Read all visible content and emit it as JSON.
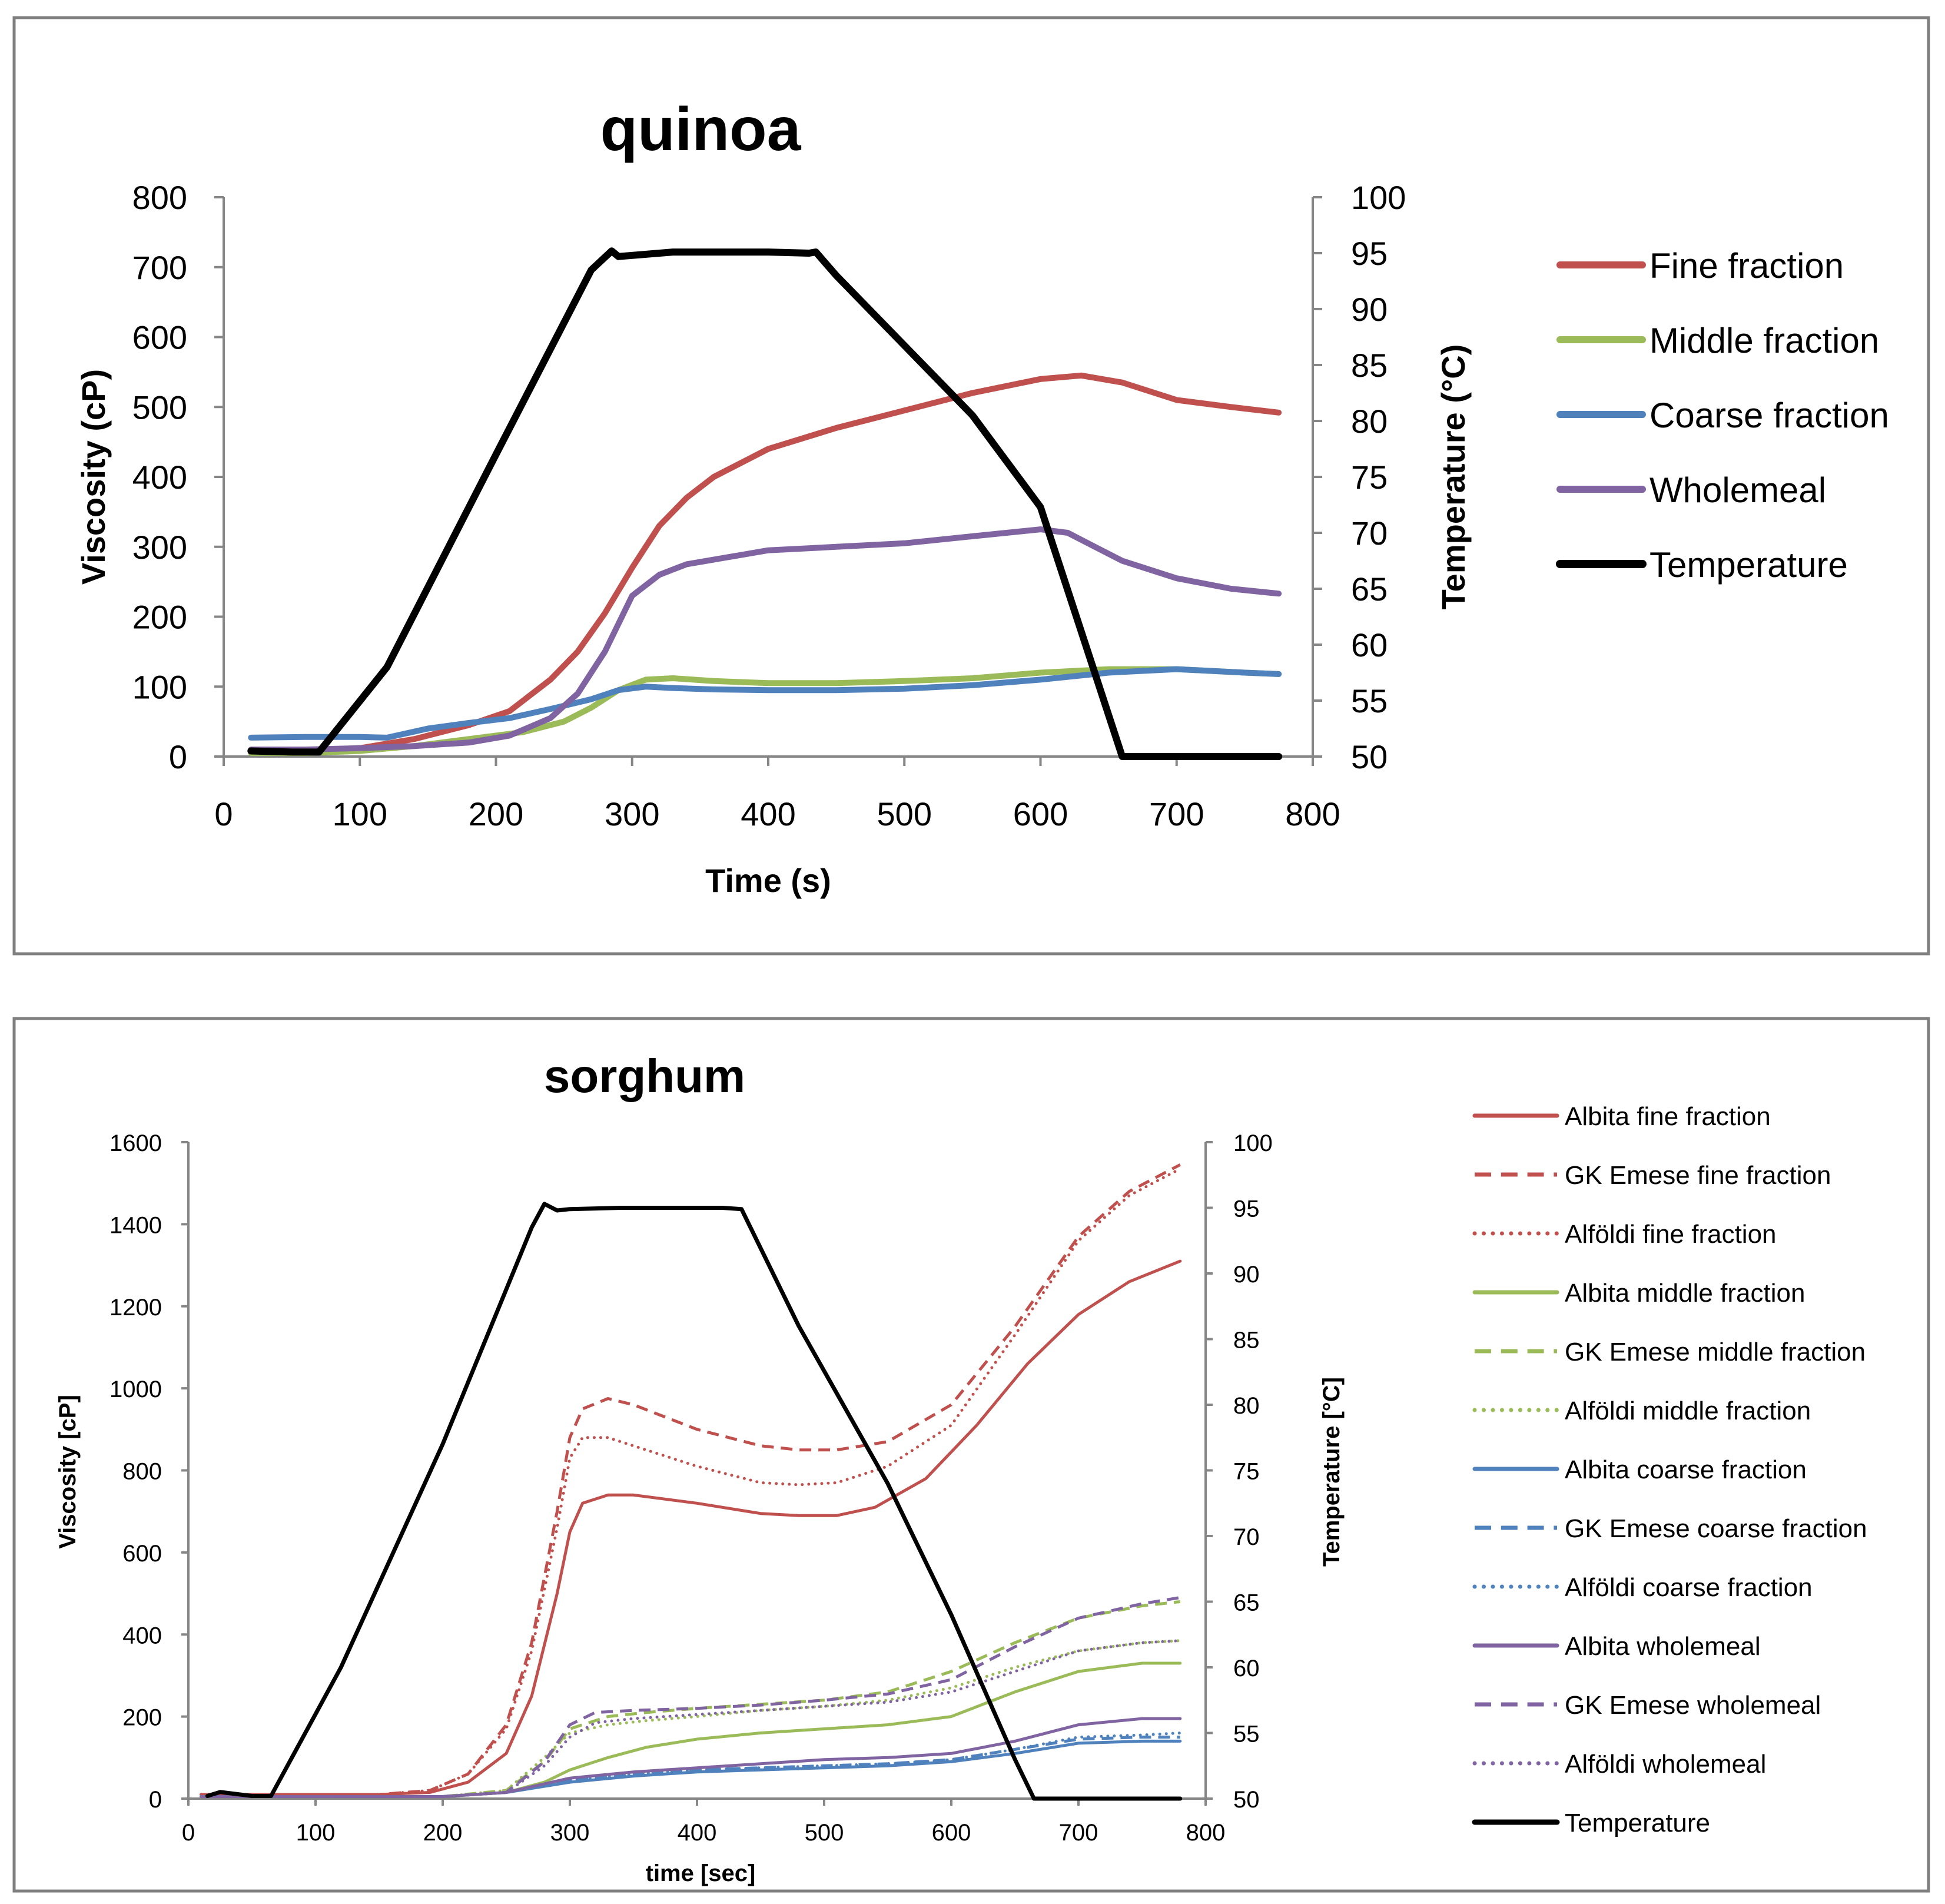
{
  "chart_data": [
    {
      "type": "line",
      "title": "quinoa",
      "xlabel": "Time (s)",
      "ylabel": "Viscosity (cP)",
      "y2label": "Temperature (°C)",
      "xlim": [
        0,
        800
      ],
      "ylim": [
        0,
        800
      ],
      "y2lim": [
        50,
        100
      ],
      "xticks": [
        "0",
        "100",
        "200",
        "300",
        "400",
        "500",
        "600",
        "700",
        "800"
      ],
      "yticks": [
        "0",
        "100",
        "200",
        "300",
        "400",
        "500",
        "600",
        "700",
        "800"
      ],
      "y2ticks": [
        "50",
        "55",
        "60",
        "65",
        "70",
        "75",
        "80",
        "85",
        "90",
        "95",
        "100"
      ],
      "legend_position": "right",
      "series": [
        {
          "name": "Fine fraction",
          "axis": "left",
          "color": "#c0504d",
          "style": "solid",
          "x": [
            20,
            60,
            100,
            140,
            180,
            210,
            240,
            260,
            280,
            300,
            320,
            340,
            360,
            400,
            450,
            500,
            550,
            600,
            630,
            660,
            700,
            740,
            775
          ],
          "y": [
            8,
            8,
            12,
            25,
            45,
            65,
            110,
            150,
            205,
            270,
            330,
            370,
            400,
            440,
            470,
            495,
            520,
            540,
            545,
            535,
            510,
            500,
            492
          ]
        },
        {
          "name": "Middle fraction",
          "axis": "left",
          "color": "#9bbb59",
          "style": "solid",
          "x": [
            20,
            60,
            100,
            140,
            180,
            220,
            250,
            270,
            290,
            310,
            330,
            360,
            400,
            450,
            500,
            550,
            600,
            650,
            700,
            750,
            775
          ],
          "y": [
            5,
            5,
            8,
            15,
            25,
            35,
            50,
            70,
            95,
            110,
            112,
            108,
            105,
            105,
            108,
            112,
            120,
            125,
            125,
            120,
            118
          ]
        },
        {
          "name": "Coarse fraction",
          "axis": "left",
          "color": "#4f81bd",
          "style": "solid",
          "x": [
            20,
            60,
            100,
            120,
            150,
            180,
            210,
            240,
            270,
            290,
            310,
            330,
            360,
            400,
            450,
            500,
            550,
            600,
            650,
            700,
            750,
            775
          ],
          "y": [
            27,
            28,
            28,
            27,
            40,
            48,
            55,
            68,
            82,
            95,
            100,
            98,
            96,
            95,
            95,
            97,
            102,
            110,
            120,
            125,
            120,
            118
          ]
        },
        {
          "name": "Wholemeal",
          "axis": "left",
          "color": "#8064a2",
          "style": "solid",
          "x": [
            20,
            60,
            100,
            140,
            180,
            210,
            240,
            260,
            280,
            300,
            320,
            340,
            370,
            400,
            450,
            500,
            550,
            600,
            620,
            640,
            660,
            700,
            740,
            775
          ],
          "y": [
            10,
            10,
            12,
            15,
            20,
            30,
            55,
            90,
            150,
            230,
            260,
            275,
            285,
            295,
            300,
            305,
            315,
            325,
            320,
            300,
            280,
            255,
            240,
            233
          ]
        },
        {
          "name": "Temperature",
          "axis": "right",
          "color": "#000000",
          "style": "solid",
          "x": [
            20,
            50,
            70,
            120,
            200,
            270,
            285,
            290,
            300,
            330,
            400,
            430,
            435,
            450,
            550,
            600,
            660,
            680,
            775
          ],
          "y": [
            50.5,
            50.4,
            50.4,
            58,
            77,
            93.5,
            95.2,
            94.7,
            94.8,
            95.1,
            95.1,
            95.0,
            95.1,
            93,
            80.5,
            72.3,
            50,
            50,
            50
          ]
        }
      ]
    },
    {
      "type": "line",
      "title": "sorghum",
      "xlabel": "time [sec]",
      "ylabel": "Viscosity [cP]",
      "y2label": "Temperature [°C]",
      "xlim": [
        0,
        800
      ],
      "ylim": [
        0,
        1600
      ],
      "y2lim": [
        50,
        100
      ],
      "xticks": [
        "0",
        "100",
        "200",
        "300",
        "400",
        "500",
        "600",
        "700",
        "800"
      ],
      "yticks": [
        "0",
        "200",
        "400",
        "600",
        "800",
        "1000",
        "1200",
        "1400",
        "1600"
      ],
      "y2ticks": [
        "50",
        "55",
        "60",
        "65",
        "70",
        "75",
        "80",
        "85",
        "90",
        "95",
        "100"
      ],
      "legend_position": "right",
      "series": [
        {
          "name": "Albita fine fraction",
          "axis": "left",
          "color": "#c0504d",
          "style": "solid",
          "x": [
            10,
            50,
            100,
            150,
            190,
            220,
            250,
            270,
            290,
            300,
            310,
            330,
            350,
            400,
            450,
            480,
            510,
            540,
            580,
            620,
            660,
            700,
            740,
            780
          ],
          "y": [
            10,
            10,
            10,
            10,
            15,
            40,
            110,
            250,
            500,
            650,
            720,
            740,
            740,
            720,
            695,
            690,
            690,
            710,
            780,
            910,
            1060,
            1180,
            1260,
            1310
          ]
        },
        {
          "name": "GK Emese fine fraction",
          "axis": "left",
          "color": "#c0504d",
          "style": "dashed",
          "x": [
            10,
            50,
            100,
            150,
            190,
            220,
            250,
            270,
            290,
            300,
            310,
            330,
            350,
            400,
            450,
            480,
            510,
            550,
            600,
            650,
            700,
            740,
            780
          ],
          "y": [
            10,
            10,
            10,
            10,
            20,
            60,
            180,
            380,
            700,
            880,
            950,
            975,
            960,
            900,
            860,
            850,
            850,
            870,
            960,
            1150,
            1370,
            1480,
            1545
          ]
        },
        {
          "name": "Alföldi fine fraction",
          "axis": "left",
          "color": "#c0504d",
          "style": "dotted",
          "x": [
            10,
            50,
            100,
            150,
            190,
            220,
            250,
            270,
            290,
            300,
            310,
            330,
            350,
            400,
            450,
            480,
            510,
            550,
            600,
            650,
            700,
            740,
            780
          ],
          "y": [
            10,
            10,
            10,
            10,
            20,
            60,
            170,
            360,
            660,
            830,
            880,
            880,
            860,
            810,
            770,
            765,
            770,
            810,
            910,
            1130,
            1360,
            1470,
            1535
          ]
        },
        {
          "name": "Albita middle fraction",
          "axis": "left",
          "color": "#9bbb59",
          "style": "solid",
          "x": [
            10,
            100,
            200,
            250,
            280,
            300,
            330,
            360,
            400,
            450,
            500,
            550,
            600,
            650,
            700,
            750,
            780
          ],
          "y": [
            5,
            5,
            5,
            15,
            40,
            70,
            100,
            125,
            145,
            160,
            170,
            180,
            200,
            260,
            310,
            330,
            330
          ]
        },
        {
          "name": "GK Emese middle fraction",
          "axis": "left",
          "color": "#9bbb59",
          "style": "dashed",
          "x": [
            10,
            100,
            200,
            250,
            280,
            300,
            330,
            360,
            400,
            450,
            500,
            550,
            600,
            650,
            700,
            750,
            780
          ],
          "y": [
            5,
            5,
            5,
            20,
            90,
            170,
            200,
            210,
            220,
            230,
            240,
            260,
            310,
            380,
            440,
            470,
            480
          ]
        },
        {
          "name": "Alföldi middle fraction",
          "axis": "left",
          "color": "#9bbb59",
          "style": "dotted",
          "x": [
            10,
            100,
            200,
            250,
            280,
            300,
            330,
            360,
            400,
            450,
            500,
            550,
            600,
            650,
            700,
            750,
            780
          ],
          "y": [
            5,
            5,
            5,
            20,
            100,
            160,
            180,
            190,
            200,
            215,
            225,
            240,
            270,
            320,
            360,
            380,
            385
          ]
        },
        {
          "name": "Albita coarse fraction",
          "axis": "left",
          "color": "#4f81bd",
          "style": "solid",
          "x": [
            10,
            100,
            200,
            250,
            300,
            350,
            400,
            450,
            500,
            550,
            600,
            650,
            700,
            750,
            780
          ],
          "y": [
            5,
            5,
            5,
            15,
            40,
            55,
            65,
            70,
            75,
            80,
            90,
            110,
            135,
            140,
            140
          ]
        },
        {
          "name": "GK Emese coarse fraction",
          "axis": "left",
          "color": "#4f81bd",
          "style": "dashed",
          "x": [
            10,
            100,
            200,
            250,
            300,
            350,
            400,
            450,
            500,
            550,
            600,
            650,
            700,
            750,
            780
          ],
          "y": [
            5,
            5,
            5,
            15,
            45,
            60,
            70,
            75,
            80,
            85,
            95,
            120,
            145,
            150,
            150
          ]
        },
        {
          "name": "Alföldi coarse fraction",
          "axis": "left",
          "color": "#4f81bd",
          "style": "dotted",
          "x": [
            10,
            100,
            200,
            250,
            300,
            350,
            400,
            450,
            500,
            550,
            600,
            650,
            700,
            750,
            780
          ],
          "y": [
            5,
            5,
            5,
            15,
            45,
            60,
            70,
            75,
            80,
            85,
            95,
            120,
            150,
            155,
            160
          ]
        },
        {
          "name": "Albita wholemeal",
          "axis": "left",
          "color": "#8064a2",
          "style": "solid",
          "x": [
            10,
            100,
            200,
            250,
            300,
            350,
            400,
            450,
            500,
            550,
            600,
            650,
            700,
            750,
            780
          ],
          "y": [
            5,
            5,
            5,
            15,
            50,
            65,
            75,
            85,
            95,
            100,
            110,
            140,
            180,
            195,
            195
          ]
        },
        {
          "name": "GK Emese wholemeal",
          "axis": "left",
          "color": "#8064a2",
          "style": "dashed",
          "x": [
            10,
            100,
            200,
            250,
            280,
            300,
            320,
            350,
            400,
            450,
            500,
            550,
            600,
            650,
            700,
            750,
            780
          ],
          "y": [
            5,
            5,
            5,
            15,
            90,
            180,
            210,
            215,
            220,
            228,
            240,
            255,
            290,
            370,
            440,
            475,
            490
          ]
        },
        {
          "name": "Alföldi wholemeal",
          "axis": "left",
          "color": "#8064a2",
          "style": "dotted",
          "x": [
            10,
            100,
            200,
            250,
            280,
            300,
            320,
            350,
            400,
            450,
            500,
            550,
            600,
            650,
            700,
            750,
            780
          ],
          "y": [
            5,
            5,
            5,
            15,
            80,
            150,
            185,
            195,
            205,
            215,
            225,
            235,
            260,
            310,
            360,
            380,
            385
          ]
        },
        {
          "name": "Temperature",
          "axis": "right",
          "color": "#000000",
          "style": "solid",
          "x": [
            15,
            25,
            50,
            65,
            120,
            200,
            270,
            280,
            290,
            300,
            340,
            380,
            420,
            435,
            480,
            550,
            600,
            650,
            665,
            700,
            780
          ],
          "y": [
            50.2,
            50.5,
            50.2,
            50.2,
            60,
            77,
            93.5,
            95.3,
            94.8,
            94.9,
            95.0,
            95.0,
            95.0,
            94.9,
            86,
            74,
            64,
            53,
            50,
            50,
            50
          ]
        }
      ]
    }
  ]
}
